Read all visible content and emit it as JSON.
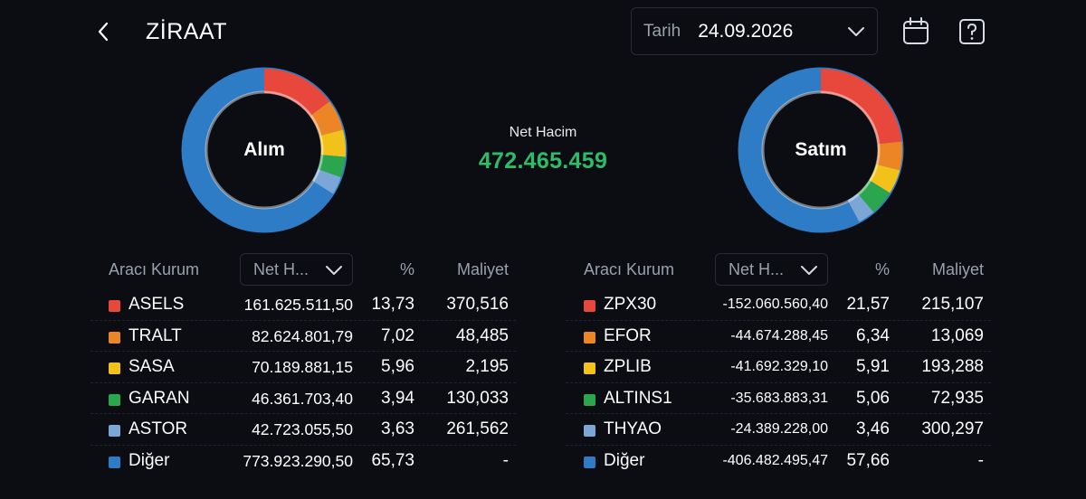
{
  "header": {
    "title": "ZİRAAT",
    "date_label": "Tarih",
    "date_value": "24.09.2026"
  },
  "colors": {
    "red": "#e8483b",
    "orange": "#ec8526",
    "yellow": "#f2c21a",
    "green": "#2ba64f",
    "lightblue": "#7ca6d6",
    "blue": "#2f7cc6",
    "net_green": "#2dbd6a"
  },
  "center": {
    "label": "Net Hacim",
    "value": "472.465.459"
  },
  "left": {
    "donut_label": "Alım",
    "headers": {
      "broker": "Aracı Kurum",
      "sort": "Net H...",
      "pct": "%",
      "cost": "Maliyet"
    },
    "rows": [
      {
        "name": "ASELS",
        "volume": "161.625.511,50",
        "pct": "13,73",
        "cost": "370,516",
        "color": "red"
      },
      {
        "name": "TRALT",
        "volume": "82.624.801,79",
        "pct": "7,02",
        "cost": "48,485",
        "color": "orange"
      },
      {
        "name": "SASA",
        "volume": "70.189.881,15",
        "pct": "5,96",
        "cost": "2,195",
        "color": "yellow"
      },
      {
        "name": "GARAN",
        "volume": "46.361.703,40",
        "pct": "3,94",
        "cost": "130,033",
        "color": "green"
      },
      {
        "name": "ASTOR",
        "volume": "42.723.055,50",
        "pct": "3,63",
        "cost": "261,562",
        "color": "lightblue"
      },
      {
        "name": "Diğer",
        "volume": "773.923.290,50",
        "pct": "65,73",
        "cost": "-",
        "color": "blue"
      }
    ]
  },
  "right": {
    "donut_label": "Satım",
    "headers": {
      "broker": "Aracı Kurum",
      "sort": "Net H...",
      "pct": "%",
      "cost": "Maliyet"
    },
    "rows": [
      {
        "name": "ZPX30",
        "volume": "-152.060.560,40",
        "pct": "21,57",
        "cost": "215,107",
        "color": "red"
      },
      {
        "name": "EFOR",
        "volume": "-44.674.288,45",
        "pct": "6,34",
        "cost": "13,069",
        "color": "orange"
      },
      {
        "name": "ZPLIB",
        "volume": "-41.692.329,10",
        "pct": "5,91",
        "cost": "193,288",
        "color": "yellow"
      },
      {
        "name": "ALTINS1",
        "volume": "-35.683.883,31",
        "pct": "5,06",
        "cost": "72,935",
        "color": "green"
      },
      {
        "name": "THYAO",
        "volume": "-24.389.228,00",
        "pct": "3,46",
        "cost": "300,297",
        "color": "lightblue"
      },
      {
        "name": "Diğer",
        "volume": "-406.482.495,47",
        "pct": "57,66",
        "cost": "-",
        "color": "blue"
      }
    ]
  }
}
